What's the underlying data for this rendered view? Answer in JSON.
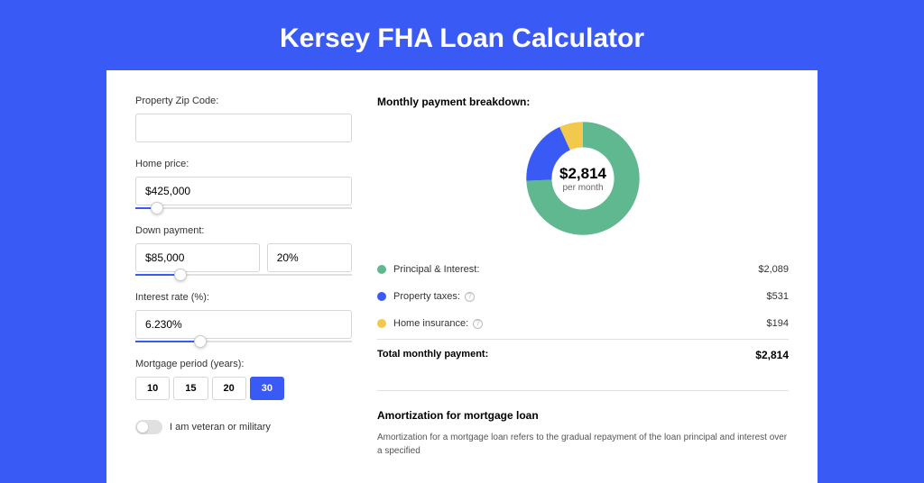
{
  "title": "Kersey FHA Loan Calculator",
  "colors": {
    "background": "#3a5af5",
    "card": "#ffffff",
    "pi": "#5fb88f",
    "tax": "#3a5af5",
    "ins": "#f2c94c"
  },
  "form": {
    "zip": {
      "label": "Property Zip Code:",
      "value": ""
    },
    "price": {
      "label": "Home price:",
      "value": "$425,000",
      "slider_pct": 10
    },
    "down": {
      "label": "Down payment:",
      "amount": "$85,000",
      "pct": "20%",
      "slider_pct": 21
    },
    "rate": {
      "label": "Interest rate (%):",
      "value": "6.230%",
      "slider_pct": 30
    },
    "period": {
      "label": "Mortgage period (years):",
      "options": [
        "10",
        "15",
        "20",
        "30"
      ],
      "selected": "30"
    },
    "veteran": {
      "label": "I am veteran or military",
      "on": false
    }
  },
  "breakdown": {
    "title": "Monthly payment breakdown:",
    "center_value": "$2,814",
    "center_sub": "per month",
    "items": [
      {
        "label": "Principal & Interest:",
        "value": "$2,089",
        "color": "#5fb88f",
        "info": false
      },
      {
        "label": "Property taxes:",
        "value": "$531",
        "color": "#3a5af5",
        "info": true
      },
      {
        "label": "Home insurance:",
        "value": "$194",
        "color": "#f2c94c",
        "info": true
      }
    ],
    "total_label": "Total monthly payment:",
    "total_value": "$2,814",
    "donut": {
      "slices": [
        {
          "color": "#5fb88f",
          "pct": 74.2
        },
        {
          "color": "#3a5af5",
          "pct": 18.9
        },
        {
          "color": "#f2c94c",
          "pct": 6.9
        }
      ],
      "stroke_width": 22
    }
  },
  "amort": {
    "title": "Amortization for mortgage loan",
    "text": "Amortization for a mortgage loan refers to the gradual repayment of the loan principal and interest over a specified"
  }
}
